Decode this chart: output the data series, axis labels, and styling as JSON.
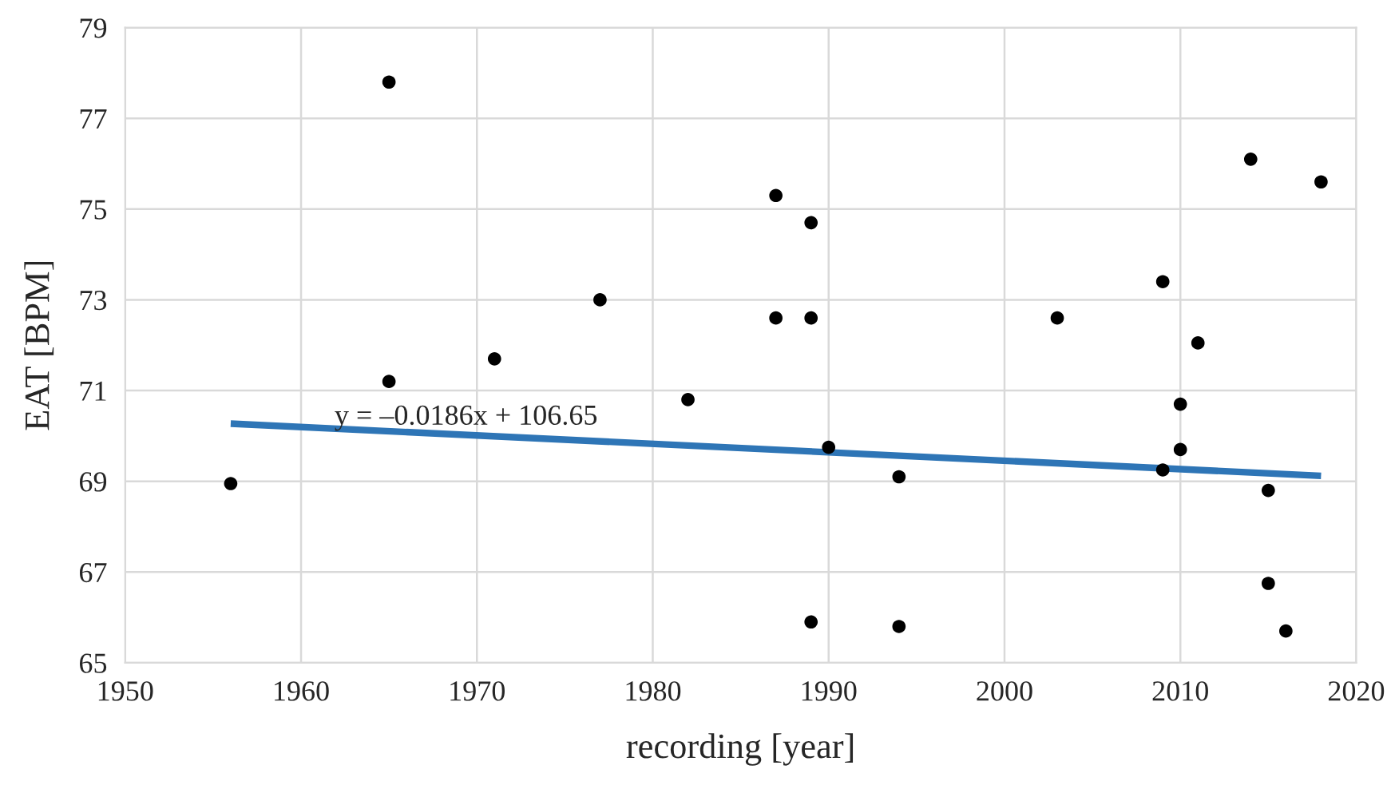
{
  "chart_data": {
    "type": "scatter",
    "xlabel": "recording [year]",
    "ylabel": "EAT [BPM]",
    "xlim": [
      1950,
      2020
    ],
    "xticks": [
      1950,
      1960,
      1970,
      1980,
      1990,
      2000,
      2010,
      2020
    ],
    "ylim": [
      65,
      79
    ],
    "yticks": [
      65,
      67,
      69,
      71,
      73,
      75,
      77,
      79
    ],
    "grid": true,
    "series": [
      {
        "color": "#000000",
        "marker": "circle",
        "x": [
          1956,
          1965,
          1965,
          1971,
          1977,
          1982,
          1987,
          1987,
          1989,
          1989,
          1989,
          1990,
          1994,
          1994,
          2003,
          2009,
          2009,
          2010,
          2010,
          2011,
          2014,
          2015,
          2015,
          2016,
          2018
        ],
        "values": [
          68.95,
          77.8,
          71.2,
          71.7,
          73.0,
          70.8,
          75.3,
          72.6,
          74.7,
          72.6,
          65.9,
          69.75,
          69.1,
          65.8,
          72.6,
          73.4,
          69.25,
          70.7,
          69.7,
          72.05,
          76.1,
          68.8,
          66.75,
          65.7,
          75.6
        ]
      },
      {
        "type": "line",
        "color": "#2e75b6",
        "marker": "none",
        "line_style": "solid",
        "x": [
          1956,
          2018
        ],
        "values": [
          70.27,
          69.12
        ]
      }
    ],
    "annotations": [
      "y = –0.0186x + 106.65"
    ]
  }
}
